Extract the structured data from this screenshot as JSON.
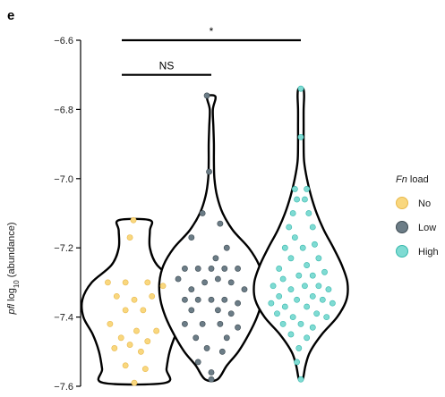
{
  "panel_label": "e",
  "chart_data": {
    "type": "violin",
    "ylabel_prefix": "pfl",
    "ylabel_log": " log",
    "ylabel_sub": "10",
    "ylabel_rest": " (abundance)",
    "ylim": [
      -7.6,
      -6.6
    ],
    "yticks": [
      -6.6,
      -6.8,
      -7.0,
      -7.2,
      -7.4,
      -7.6
    ],
    "ytick_labels": [
      "−6.6",
      "−6.8",
      "−7.0",
      "−7.2",
      "−7.4",
      "−7.6"
    ],
    "legend_title_italic": "Fn",
    "legend_title_rest": " load",
    "legend_position": "right",
    "groups": [
      {
        "name": "No",
        "color": "#f9d77e",
        "stroke": "#e8b84a",
        "ymin": -7.59,
        "ymax": -7.12,
        "profile": [
          [
            -7.59,
            0.6
          ],
          [
            -7.55,
            0.62
          ],
          [
            -7.5,
            0.68
          ],
          [
            -7.45,
            0.8
          ],
          [
            -7.4,
            0.98
          ],
          [
            -7.35,
            1.0
          ],
          [
            -7.3,
            0.82
          ],
          [
            -7.25,
            0.44
          ],
          [
            -7.2,
            0.3
          ],
          [
            -7.15,
            0.3
          ],
          [
            -7.12,
            0.3
          ]
        ],
        "points": [
          [
            -0.02,
            -7.12
          ],
          [
            -0.1,
            -7.17
          ],
          [
            -0.6,
            -7.3
          ],
          [
            -0.2,
            -7.3
          ],
          [
            0.3,
            -7.3
          ],
          [
            0.65,
            -7.31
          ],
          [
            -0.4,
            -7.34
          ],
          [
            0.0,
            -7.35
          ],
          [
            0.4,
            -7.34
          ],
          [
            -0.2,
            -7.38
          ],
          [
            0.2,
            -7.38
          ],
          [
            -0.55,
            -7.42
          ],
          [
            0.05,
            -7.44
          ],
          [
            0.5,
            -7.44
          ],
          [
            -0.3,
            -7.46
          ],
          [
            0.3,
            -7.47
          ],
          [
            -0.1,
            -7.48
          ],
          [
            -0.45,
            -7.49
          ],
          [
            0.15,
            -7.5
          ],
          [
            -0.2,
            -7.54
          ],
          [
            0.25,
            -7.55
          ],
          [
            0.0,
            -7.59
          ]
        ]
      },
      {
        "name": "Low",
        "color": "#6c7d87",
        "stroke": "#3d4a52",
        "ymin": -7.58,
        "ymax": -6.76,
        "profile": [
          [
            -7.58,
            0.12
          ],
          [
            -7.54,
            0.3
          ],
          [
            -7.5,
            0.52
          ],
          [
            -7.45,
            0.72
          ],
          [
            -7.4,
            0.88
          ],
          [
            -7.35,
            0.98
          ],
          [
            -7.3,
            1.0
          ],
          [
            -7.25,
            0.92
          ],
          [
            -7.2,
            0.72
          ],
          [
            -7.15,
            0.42
          ],
          [
            -7.1,
            0.22
          ],
          [
            -7.05,
            0.11
          ],
          [
            -7.0,
            0.06
          ],
          [
            -6.95,
            0.05
          ],
          [
            -6.9,
            0.05
          ],
          [
            -6.85,
            0.04
          ],
          [
            -6.8,
            0.03
          ],
          [
            -6.77,
            0.08
          ],
          [
            -6.76,
            0.06
          ]
        ],
        "points": [
          [
            -0.1,
            -6.76
          ],
          [
            -0.05,
            -6.98
          ],
          [
            -0.2,
            -7.1
          ],
          [
            0.2,
            -7.13
          ],
          [
            -0.45,
            -7.17
          ],
          [
            0.35,
            -7.2
          ],
          [
            0.1,
            -7.23
          ],
          [
            -0.6,
            -7.26
          ],
          [
            -0.3,
            -7.26
          ],
          [
            0.0,
            -7.26
          ],
          [
            0.3,
            -7.26
          ],
          [
            0.6,
            -7.26
          ],
          [
            -0.75,
            -7.29
          ],
          [
            -0.15,
            -7.3
          ],
          [
            0.15,
            -7.29
          ],
          [
            0.45,
            -7.3
          ],
          [
            -0.45,
            -7.32
          ],
          [
            0.75,
            -7.32
          ],
          [
            -0.6,
            -7.35
          ],
          [
            -0.3,
            -7.35
          ],
          [
            0.0,
            -7.35
          ],
          [
            0.3,
            -7.35
          ],
          [
            0.6,
            -7.36
          ],
          [
            -0.45,
            -7.38
          ],
          [
            0.15,
            -7.38
          ],
          [
            0.45,
            -7.39
          ],
          [
            -0.6,
            -7.42
          ],
          [
            -0.2,
            -7.42
          ],
          [
            0.2,
            -7.42
          ],
          [
            0.6,
            -7.43
          ],
          [
            -0.35,
            -7.46
          ],
          [
            0.35,
            -7.46
          ],
          [
            -0.1,
            -7.49
          ],
          [
            0.25,
            -7.5
          ],
          [
            -0.3,
            -7.53
          ],
          [
            0.0,
            -7.56
          ],
          [
            0.0,
            -7.58
          ]
        ]
      },
      {
        "name": "High",
        "color": "#7fdbd3",
        "stroke": "#36b8ac",
        "ymin": -7.58,
        "ymax": -6.74,
        "profile": [
          [
            -7.58,
            0.04
          ],
          [
            -7.54,
            0.1
          ],
          [
            -7.5,
            0.2
          ],
          [
            -7.45,
            0.45
          ],
          [
            -7.4,
            0.78
          ],
          [
            -7.35,
            0.98
          ],
          [
            -7.3,
            1.0
          ],
          [
            -7.25,
            0.88
          ],
          [
            -7.2,
            0.7
          ],
          [
            -7.15,
            0.5
          ],
          [
            -7.1,
            0.34
          ],
          [
            -7.05,
            0.22
          ],
          [
            -7.0,
            0.13
          ],
          [
            -6.95,
            0.07
          ],
          [
            -6.9,
            0.06
          ],
          [
            -6.85,
            0.06
          ],
          [
            -6.8,
            0.06
          ],
          [
            -6.76,
            0.07
          ],
          [
            -6.74,
            0.05
          ]
        ],
        "points": [
          [
            0.0,
            -6.74
          ],
          [
            0.0,
            -6.88
          ],
          [
            -0.15,
            -7.03
          ],
          [
            0.15,
            -7.03
          ],
          [
            -0.1,
            -7.06
          ],
          [
            0.1,
            -7.06
          ],
          [
            -0.2,
            -7.1
          ],
          [
            0.2,
            -7.1
          ],
          [
            -0.3,
            -7.14
          ],
          [
            0.3,
            -7.14
          ],
          [
            -0.15,
            -7.17
          ],
          [
            0.35,
            -7.19
          ],
          [
            -0.4,
            -7.2
          ],
          [
            0.05,
            -7.2
          ],
          [
            -0.25,
            -7.23
          ],
          [
            0.45,
            -7.23
          ],
          [
            -0.55,
            -7.26
          ],
          [
            0.15,
            -7.25
          ],
          [
            -0.05,
            -7.28
          ],
          [
            0.3,
            -7.28
          ],
          [
            0.6,
            -7.27
          ],
          [
            -0.45,
            -7.29
          ],
          [
            -0.7,
            -7.31
          ],
          [
            0.1,
            -7.31
          ],
          [
            0.45,
            -7.31
          ],
          [
            -0.25,
            -7.32
          ],
          [
            0.7,
            -7.32
          ],
          [
            -0.55,
            -7.34
          ],
          [
            0.3,
            -7.34
          ],
          [
            -0.1,
            -7.35
          ],
          [
            0.55,
            -7.35
          ],
          [
            -0.75,
            -7.36
          ],
          [
            0.8,
            -7.36
          ],
          [
            -0.4,
            -7.37
          ],
          [
            0.15,
            -7.37
          ],
          [
            -0.6,
            -7.39
          ],
          [
            0.4,
            -7.39
          ],
          [
            -0.2,
            -7.4
          ],
          [
            0.65,
            -7.4
          ],
          [
            -0.45,
            -7.42
          ],
          [
            0.0,
            -7.42
          ],
          [
            0.3,
            -7.43
          ],
          [
            -0.25,
            -7.45
          ],
          [
            0.15,
            -7.46
          ],
          [
            -0.05,
            -7.49
          ],
          [
            -0.1,
            -7.53
          ],
          [
            0.0,
            -7.58
          ]
        ]
      }
    ],
    "significance": [
      {
        "from": 0,
        "to": 1,
        "y": -6.7,
        "label": "NS"
      },
      {
        "from": 0,
        "to": 2,
        "y": -6.6,
        "label": "*"
      }
    ]
  }
}
